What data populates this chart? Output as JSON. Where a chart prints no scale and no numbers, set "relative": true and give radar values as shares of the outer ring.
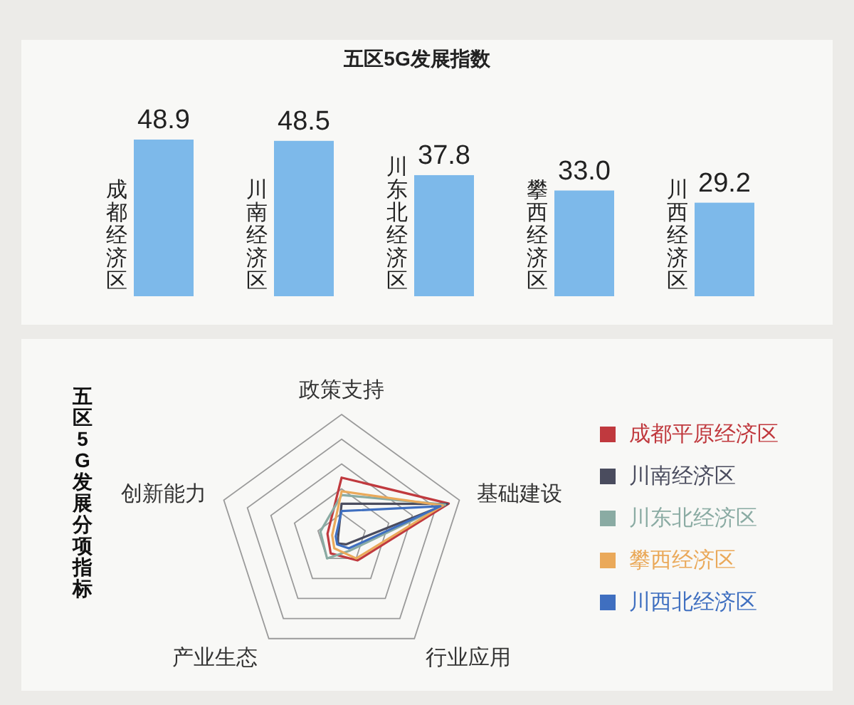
{
  "chart_data": [
    {
      "type": "bar",
      "title": "五区5G发展指数",
      "categories": [
        "成都经济区",
        "川南经济区",
        "川东北经济区",
        "攀西经济区",
        "川西经济区"
      ],
      "values": [
        48.9,
        48.5,
        37.8,
        33.0,
        29.2
      ],
      "value_labels": [
        "48.9",
        "48.5",
        "37.8",
        "33.0",
        "29.2"
      ],
      "color": "#7db9ea"
    },
    {
      "type": "radar",
      "title": "五区5G发展分项指标",
      "categories": [
        "政策支持",
        "基础建设",
        "行业应用",
        "产业生态",
        "创新能力"
      ],
      "relative": true,
      "grid": true,
      "legend": "right",
      "series": [
        {
          "name": "成都平原经济区",
          "color": "#c0393e",
          "values": [
            0.49,
            0.91,
            0.22,
            0.15,
            0.12
          ]
        },
        {
          "name": "川南经济区",
          "color": "#4a4c5e",
          "values": [
            0.28,
            0.9,
            0.06,
            0.05,
            0.03
          ]
        },
        {
          "name": "川东北经济区",
          "color": "#8aaba3",
          "values": [
            0.35,
            0.88,
            0.12,
            0.2,
            0.18
          ]
        },
        {
          "name": "攀西经济区",
          "color": "#eaa95a",
          "values": [
            0.38,
            0.86,
            0.2,
            0.1,
            0.08
          ]
        },
        {
          "name": "川西北经济区",
          "color": "#3f6fc0",
          "values": [
            0.22,
            0.84,
            0.1,
            0.06,
            0.05
          ]
        }
      ]
    }
  ]
}
